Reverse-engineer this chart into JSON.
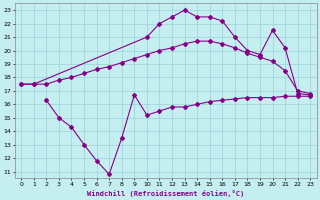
{
  "xlabel": "Windchill (Refroidissement éolien,°C)",
  "xlim": [
    -0.5,
    23.5
  ],
  "ylim": [
    10.5,
    23.5
  ],
  "xticks": [
    0,
    1,
    2,
    3,
    4,
    5,
    6,
    7,
    8,
    9,
    10,
    11,
    12,
    13,
    14,
    15,
    16,
    17,
    18,
    19,
    20,
    21,
    22,
    23
  ],
  "yticks": [
    11,
    12,
    13,
    14,
    15,
    16,
    17,
    18,
    19,
    20,
    21,
    22,
    23
  ],
  "bg_color": "#c5eef0",
  "grid_color": "#9fd8dc",
  "line_color": "#880088",
  "markersize": 2.0,
  "linewidth": 0.8,
  "line1_x": [
    0,
    1,
    10,
    11,
    12,
    13,
    14,
    15,
    16,
    17,
    18,
    19,
    20,
    21,
    22,
    23
  ],
  "line1_y": [
    17.5,
    17.5,
    21.0,
    22.0,
    22.5,
    23.0,
    22.5,
    22.5,
    22.2,
    21.0,
    20.0,
    19.7,
    21.5,
    20.2,
    16.8,
    16.7
  ],
  "line2_x": [
    0,
    1,
    2,
    3,
    4,
    5,
    6,
    7,
    8,
    9,
    10,
    11,
    12,
    13,
    14,
    15,
    16,
    17,
    18,
    19,
    20,
    21,
    22,
    23
  ],
  "line2_y": [
    17.5,
    17.5,
    17.5,
    17.8,
    18.0,
    18.3,
    18.6,
    18.8,
    19.1,
    19.4,
    19.7,
    20.0,
    20.2,
    20.5,
    20.7,
    20.7,
    20.5,
    20.2,
    19.8,
    19.5,
    19.2,
    18.5,
    17.0,
    16.8
  ],
  "line3_x": [
    2,
    3,
    4,
    5,
    6,
    7,
    8,
    9,
    10,
    11,
    12,
    13,
    14,
    15,
    16,
    17,
    18,
    19,
    20,
    21,
    22,
    23
  ],
  "line3_y": [
    16.3,
    15.0,
    14.3,
    13.0,
    11.8,
    10.8,
    13.5,
    16.7,
    15.2,
    15.5,
    15.8,
    15.8,
    16.0,
    16.2,
    16.3,
    16.4,
    16.5,
    16.5,
    16.5,
    16.6,
    16.6,
    16.6
  ]
}
